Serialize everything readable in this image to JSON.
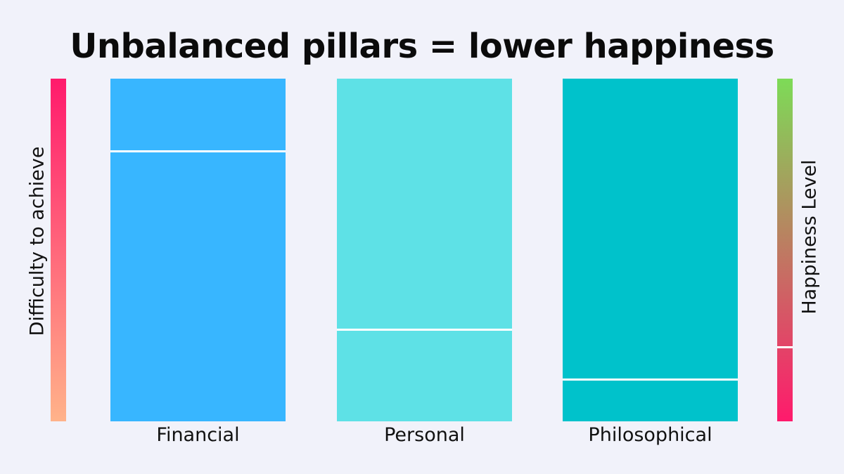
{
  "title": "Unbalanced pillars = lower happiness",
  "left_gauge": {
    "label": "Difficulty to achieve",
    "gradient_top": "#ff1a6c",
    "gradient_bottom": "#ffb38a"
  },
  "right_gauge": {
    "label": "Happiness Level",
    "gradient_top": "#7ddb57",
    "gradient_bottom": "#ff1a6c",
    "level_fraction": 0.22
  },
  "pillars": [
    {
      "label": "Financial",
      "color": "#38b6ff",
      "level_fraction": 0.79
    },
    {
      "label": "Personal",
      "color": "#5ee1e6",
      "level_fraction": 0.27
    },
    {
      "label": "Philosophical",
      "color": "#00c2cb",
      "level_fraction": 0.125
    }
  ]
}
